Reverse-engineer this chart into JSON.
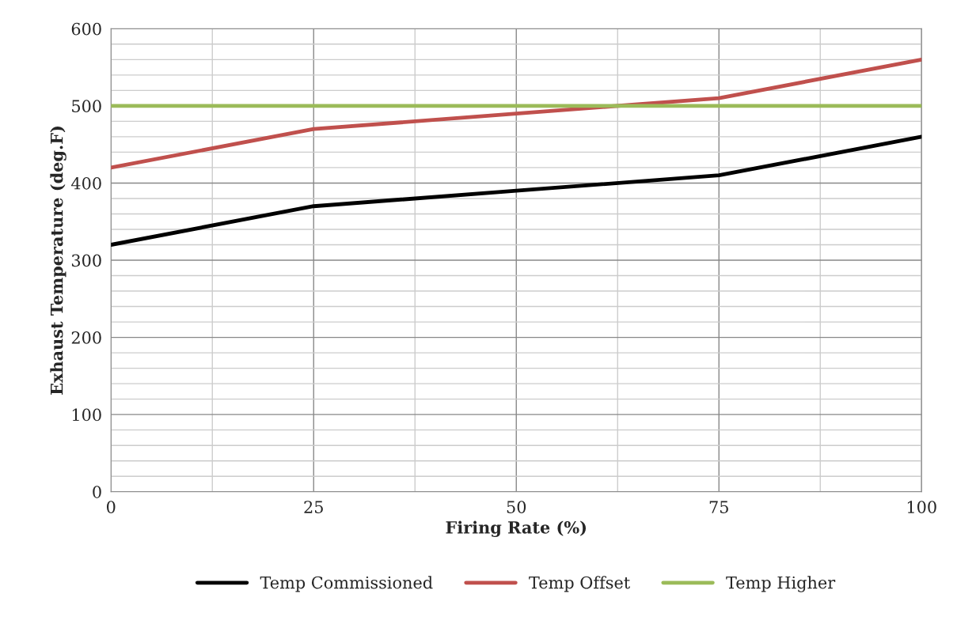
{
  "chart_data": {
    "type": "line",
    "xlabel": "Firing Rate (%)",
    "ylabel": "Exhaust Temperature (deg.F)",
    "x": [
      0,
      25,
      50,
      75,
      100
    ],
    "series": [
      {
        "name": "Temp Commissioned",
        "color": "#000000",
        "values": [
          320,
          370,
          390,
          410,
          460
        ]
      },
      {
        "name": "Temp Offset",
        "color": "#c0504d",
        "values": [
          420,
          470,
          490,
          510,
          560
        ]
      },
      {
        "name": "Temp Higher",
        "color": "#9bbb59",
        "values": [
          500,
          500,
          500,
          500,
          500
        ]
      }
    ],
    "xlim": [
      0,
      100
    ],
    "xticks": [
      0,
      {
        "value": 12.5,
        "label": null
      },
      25,
      {
        "value": 37.5,
        "label": null
      },
      50,
      {
        "value": 62.5,
        "label": null
      },
      75,
      {
        "value": 87.5,
        "label": null
      },
      100
    ],
    "ylim": [
      0,
      600
    ],
    "yticks": [
      0,
      {
        "value": 20,
        "label": null
      },
      {
        "value": 40,
        "label": null
      },
      {
        "value": 60,
        "label": null
      },
      {
        "value": 80,
        "label": null
      },
      100,
      {
        "value": 120,
        "label": null
      },
      {
        "value": 140,
        "label": null
      },
      {
        "value": 160,
        "label": null
      },
      {
        "value": 180,
        "label": null
      },
      200,
      {
        "value": 220,
        "label": null
      },
      {
        "value": 240,
        "label": null
      },
      {
        "value": 260,
        "label": null
      },
      {
        "value": 280,
        "label": null
      },
      300,
      {
        "value": 320,
        "label": null
      },
      {
        "value": 340,
        "label": null
      },
      {
        "value": 360,
        "label": null
      },
      {
        "value": 380,
        "label": null
      },
      400,
      {
        "value": 420,
        "label": null
      },
      {
        "value": 440,
        "label": null
      },
      {
        "value": 460,
        "label": null
      },
      {
        "value": 480,
        "label": null
      },
      500,
      {
        "value": 520,
        "label": null
      },
      {
        "value": 540,
        "label": null
      },
      {
        "value": 560,
        "label": null
      },
      {
        "value": 580,
        "label": null
      },
      600
    ],
    "grid": true,
    "legend": "bottom",
    "marker": "none",
    "line_style": "solid"
  }
}
